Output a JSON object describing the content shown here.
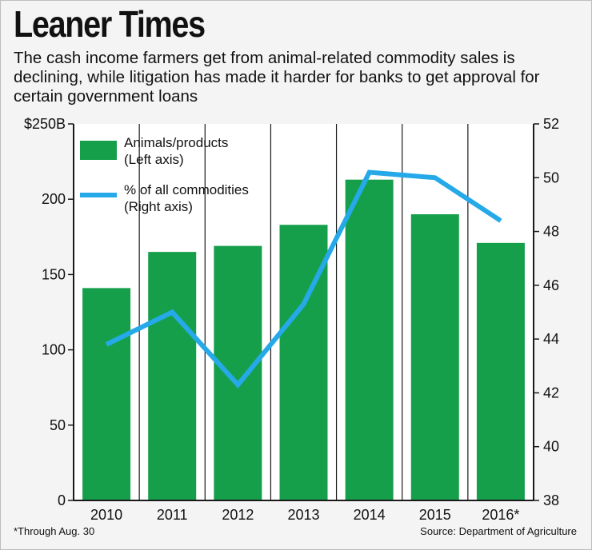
{
  "title": "Leaner Times",
  "subtitle": "The cash income farmers get from animal-related commodity sales is declining, while litigation has made it harder for banks to get approval for certain government loans",
  "footnote": "*Through Aug. 30",
  "source": "Source: Department of Agriculture",
  "colors": {
    "bar": "#169f4b",
    "line": "#26a9e8",
    "grid": "#1a1a1a",
    "background": "#f4f4f4"
  },
  "chart_data": {
    "type": "bar",
    "categories": [
      "2010",
      "2011",
      "2012",
      "2013",
      "2014",
      "2015",
      "2016*"
    ],
    "series": [
      {
        "name": "Animals/products",
        "legend_lines": [
          "Animals/products",
          "(Left axis)"
        ],
        "type": "bar",
        "axis": "left",
        "values": [
          141,
          165,
          169,
          183,
          213,
          190,
          171
        ]
      },
      {
        "name": "% of all commodities",
        "legend_lines": [
          "% of all commodities",
          "(Right axis)"
        ],
        "type": "line",
        "axis": "right",
        "values": [
          43.8,
          45.0,
          42.3,
          45.3,
          50.2,
          50.0,
          48.4
        ]
      }
    ],
    "left_axis": {
      "ylim": [
        0,
        250
      ],
      "ticks": [
        0,
        50,
        100,
        150,
        200,
        250
      ],
      "tick_labels": [
        "0",
        "50",
        "100",
        "150",
        "200",
        "$250B"
      ]
    },
    "right_axis": {
      "ylim": [
        38,
        52
      ],
      "ticks": [
        38,
        40,
        42,
        44,
        46,
        48,
        50,
        52
      ],
      "tick_labels": [
        "38",
        "40",
        "42",
        "44",
        "46",
        "48",
        "50",
        "52"
      ]
    },
    "grid": "vertical",
    "legend_position": "top-left"
  }
}
